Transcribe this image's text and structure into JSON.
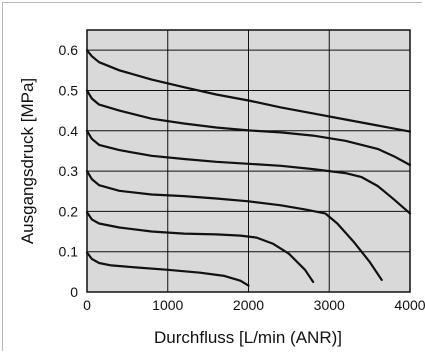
{
  "chart_data": {
    "type": "line",
    "title": "",
    "xlabel": "Durchfluss [L/min (ANR)]",
    "ylabel": "Ausgangsdruck [MPa]",
    "xlim": [
      0,
      4000
    ],
    "ylim": [
      0,
      0.65
    ],
    "x_ticks": [
      "0",
      "1000",
      "2000",
      "3000",
      "4000"
    ],
    "y_ticks": [
      "0",
      "0.1",
      "0.2",
      "0.3",
      "0.4",
      "0.5",
      "0.6"
    ],
    "grid": true,
    "legend": "none",
    "colors": {
      "background": "#d9d9d9",
      "grid": "#111111",
      "line": "#111111"
    },
    "series": [
      {
        "points": [
          [
            0,
            0.098
          ],
          [
            60,
            0.082
          ],
          [
            150,
            0.072
          ],
          [
            300,
            0.066
          ],
          [
            600,
            0.061
          ],
          [
            1000,
            0.055
          ],
          [
            1400,
            0.048
          ],
          [
            1700,
            0.04
          ],
          [
            1900,
            0.028
          ],
          [
            2000,
            0.016
          ]
        ]
      },
      {
        "points": [
          [
            0,
            0.198
          ],
          [
            60,
            0.18
          ],
          [
            150,
            0.17
          ],
          [
            400,
            0.16
          ],
          [
            800,
            0.15
          ],
          [
            1200,
            0.145
          ],
          [
            1600,
            0.143
          ],
          [
            1900,
            0.14
          ],
          [
            2100,
            0.135
          ],
          [
            2300,
            0.12
          ],
          [
            2500,
            0.095
          ],
          [
            2700,
            0.055
          ],
          [
            2800,
            0.025
          ]
        ]
      },
      {
        "points": [
          [
            0,
            0.3
          ],
          [
            60,
            0.28
          ],
          [
            150,
            0.265
          ],
          [
            400,
            0.251
          ],
          [
            800,
            0.242
          ],
          [
            1200,
            0.238
          ],
          [
            1600,
            0.232
          ],
          [
            2000,
            0.225
          ],
          [
            2400,
            0.215
          ],
          [
            2700,
            0.205
          ],
          [
            2950,
            0.195
          ],
          [
            3100,
            0.17
          ],
          [
            3300,
            0.125
          ],
          [
            3500,
            0.075
          ],
          [
            3650,
            0.03
          ]
        ]
      },
      {
        "points": [
          [
            0,
            0.4
          ],
          [
            60,
            0.38
          ],
          [
            150,
            0.365
          ],
          [
            400,
            0.352
          ],
          [
            800,
            0.338
          ],
          [
            1200,
            0.33
          ],
          [
            1600,
            0.323
          ],
          [
            2000,
            0.318
          ],
          [
            2400,
            0.313
          ],
          [
            2800,
            0.305
          ],
          [
            3200,
            0.295
          ],
          [
            3400,
            0.285
          ],
          [
            3600,
            0.263
          ],
          [
            3800,
            0.23
          ],
          [
            4000,
            0.195
          ]
        ]
      },
      {
        "points": [
          [
            0,
            0.5
          ],
          [
            60,
            0.48
          ],
          [
            150,
            0.465
          ],
          [
            400,
            0.45
          ],
          [
            800,
            0.43
          ],
          [
            1200,
            0.418
          ],
          [
            1600,
            0.408
          ],
          [
            2000,
            0.401
          ],
          [
            2400,
            0.396
          ],
          [
            2800,
            0.388
          ],
          [
            3200,
            0.375
          ],
          [
            3600,
            0.355
          ],
          [
            3800,
            0.337
          ],
          [
            4000,
            0.315
          ]
        ]
      },
      {
        "points": [
          [
            0,
            0.6
          ],
          [
            60,
            0.585
          ],
          [
            150,
            0.57
          ],
          [
            400,
            0.55
          ],
          [
            800,
            0.527
          ],
          [
            1200,
            0.508
          ],
          [
            1600,
            0.49
          ],
          [
            2000,
            0.475
          ],
          [
            2400,
            0.458
          ],
          [
            2800,
            0.443
          ],
          [
            3200,
            0.428
          ],
          [
            3600,
            0.413
          ],
          [
            4000,
            0.398
          ]
        ]
      }
    ]
  }
}
